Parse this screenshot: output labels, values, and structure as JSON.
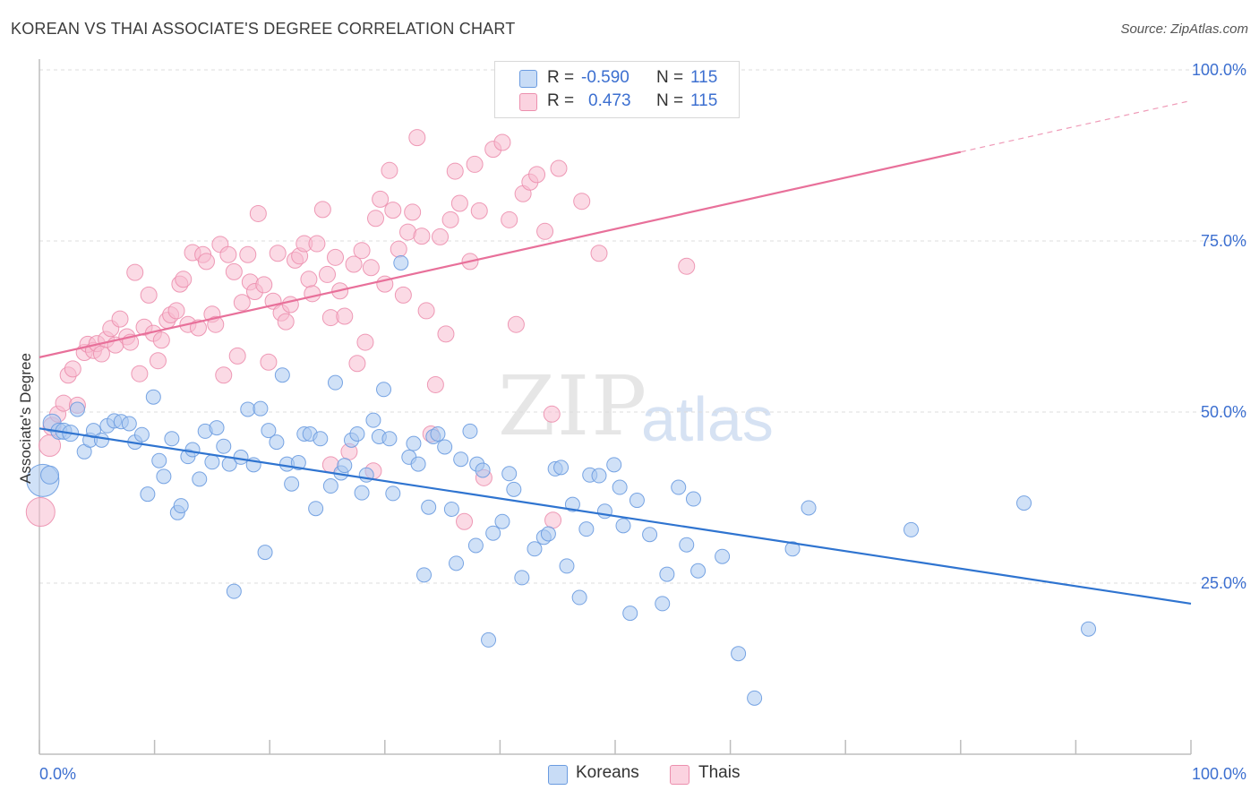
{
  "header": {
    "title": "KOREAN VS THAI ASSOCIATE'S DEGREE CORRELATION CHART",
    "source": "Source: ZipAtlas.com"
  },
  "watermark": {
    "zip": "ZIP",
    "atlas": "atlas"
  },
  "legend": {
    "r_label": "R =",
    "n_label": "N =",
    "rows": [
      {
        "r": "-0.590",
        "n": "115",
        "color": "#a9c8f0"
      },
      {
        "r": "0.473",
        "n": "115",
        "color": "#f7bcd0"
      }
    ]
  },
  "bottom_legend": [
    {
      "label": "Koreans",
      "color": "#a9c8f0"
    },
    {
      "label": "Thais",
      "color": "#f7bcd0"
    }
  ],
  "colors": {
    "korean_fill": "#a9c8f0",
    "korean_stroke": "#6a9be0",
    "korean_line": "#2f74d0",
    "thai_fill": "#f7bcd0",
    "thai_stroke": "#ec8fae",
    "thai_line": "#e8709a",
    "grid": "#dcdcdc"
  },
  "chart_data": {
    "type": "scatter",
    "title": "KOREAN VS THAI ASSOCIATE'S DEGREE CORRELATION CHART",
    "xlabel": "",
    "ylabel": "Associate's Degree",
    "xlim": [
      0,
      100
    ],
    "ylim": [
      0,
      100
    ],
    "x_tick_labels": [
      "0.0%",
      "100.0%"
    ],
    "y_tick_labels": [
      "25.0%",
      "50.0%",
      "75.0%",
      "100.0%"
    ],
    "y_ticks": [
      25,
      50,
      75,
      100
    ],
    "grid": true,
    "legend_position": "top-center",
    "series": [
      {
        "name": "Koreans",
        "r": -0.59,
        "n": 115,
        "trend": {
          "x": [
            0,
            100
          ],
          "y": [
            47.6,
            22.0
          ]
        },
        "points": [
          [
            0.3,
            40,
            18
          ],
          [
            0.9,
            40.8,
            10
          ],
          [
            1.1,
            48.4,
            10
          ],
          [
            1.7,
            47.2,
            9
          ],
          [
            2.1,
            47.2,
            9
          ],
          [
            2.7,
            46.9,
            9
          ],
          [
            3.3,
            50.4,
            8
          ],
          [
            3.9,
            44.2,
            8
          ],
          [
            4.4,
            45.9,
            8
          ],
          [
            4.7,
            47.3,
            8
          ],
          [
            5.4,
            45.9,
            8
          ],
          [
            5.9,
            48.0,
            8
          ],
          [
            6.5,
            48.7,
            8
          ],
          [
            7.1,
            48.6,
            8
          ],
          [
            7.8,
            48.3,
            8
          ],
          [
            8.3,
            45.6,
            8
          ],
          [
            8.9,
            46.7,
            8
          ],
          [
            9.4,
            38.0,
            8
          ],
          [
            9.9,
            52.2,
            8
          ],
          [
            10.4,
            42.9,
            8
          ],
          [
            10.8,
            40.6,
            8
          ],
          [
            11.5,
            46.1,
            8
          ],
          [
            12.0,
            35.3,
            8
          ],
          [
            12.3,
            36.3,
            8
          ],
          [
            12.9,
            43.5,
            8
          ],
          [
            13.3,
            44.5,
            8
          ],
          [
            13.9,
            40.2,
            8
          ],
          [
            14.4,
            47.2,
            8
          ],
          [
            15.0,
            42.7,
            8
          ],
          [
            15.4,
            47.7,
            8
          ],
          [
            16.0,
            45.0,
            8
          ],
          [
            16.5,
            42.4,
            8
          ],
          [
            16.9,
            23.8,
            8
          ],
          [
            17.5,
            43.4,
            8
          ],
          [
            18.1,
            50.4,
            8
          ],
          [
            18.6,
            42.3,
            8
          ],
          [
            19.2,
            50.5,
            8
          ],
          [
            19.6,
            29.5,
            8
          ],
          [
            19.9,
            47.3,
            8
          ],
          [
            20.6,
            45.6,
            8
          ],
          [
            21.1,
            55.4,
            8
          ],
          [
            21.5,
            42.4,
            8
          ],
          [
            21.9,
            39.5,
            8
          ],
          [
            22.5,
            42.6,
            8
          ],
          [
            23.0,
            46.8,
            8
          ],
          [
            23.5,
            46.8,
            8
          ],
          [
            24.0,
            35.9,
            8
          ],
          [
            24.4,
            46.1,
            8
          ],
          [
            25.3,
            39.2,
            8
          ],
          [
            25.7,
            54.3,
            8
          ],
          [
            26.2,
            41.1,
            8
          ],
          [
            26.5,
            42.2,
            8
          ],
          [
            27.1,
            45.9,
            8
          ],
          [
            27.6,
            46.8,
            8
          ],
          [
            28.0,
            38.2,
            8
          ],
          [
            28.4,
            40.8,
            8
          ],
          [
            29.0,
            48.8,
            8
          ],
          [
            29.5,
            46.4,
            8
          ],
          [
            29.9,
            53.3,
            8
          ],
          [
            30.4,
            46.1,
            8
          ],
          [
            30.7,
            38.1,
            8
          ],
          [
            31.4,
            71.8,
            8
          ],
          [
            32.1,
            43.4,
            8
          ],
          [
            32.5,
            45.4,
            8
          ],
          [
            32.9,
            42.4,
            8
          ],
          [
            33.4,
            26.2,
            8
          ],
          [
            33.8,
            36.1,
            8
          ],
          [
            34.2,
            46.4,
            8
          ],
          [
            34.6,
            46.8,
            8
          ],
          [
            35.2,
            44.9,
            8
          ],
          [
            35.8,
            35.8,
            8
          ],
          [
            36.2,
            27.9,
            8
          ],
          [
            36.6,
            43.1,
            8
          ],
          [
            37.4,
            47.2,
            8
          ],
          [
            37.9,
            30.5,
            8
          ],
          [
            38.0,
            42.4,
            8
          ],
          [
            38.5,
            41.5,
            8
          ],
          [
            39.0,
            16.7,
            8
          ],
          [
            39.4,
            32.3,
            8
          ],
          [
            40.2,
            34.0,
            8
          ],
          [
            40.8,
            41.0,
            8
          ],
          [
            41.2,
            38.7,
            8
          ],
          [
            41.9,
            25.8,
            8
          ],
          [
            43.0,
            30.0,
            8
          ],
          [
            43.8,
            31.7,
            8
          ],
          [
            44.2,
            32.2,
            8
          ],
          [
            44.8,
            41.7,
            8
          ],
          [
            45.3,
            41.9,
            8
          ],
          [
            45.8,
            27.5,
            8
          ],
          [
            46.3,
            36.5,
            8
          ],
          [
            46.9,
            22.9,
            8
          ],
          [
            47.5,
            32.9,
            8
          ],
          [
            47.8,
            40.8,
            8
          ],
          [
            48.6,
            40.7,
            8
          ],
          [
            49.1,
            35.5,
            8
          ],
          [
            49.9,
            42.3,
            8
          ],
          [
            50.4,
            39.0,
            8
          ],
          [
            50.7,
            33.4,
            8
          ],
          [
            51.3,
            20.6,
            8
          ],
          [
            51.9,
            37.1,
            8
          ],
          [
            53.0,
            32.1,
            8
          ],
          [
            54.1,
            22.0,
            8
          ],
          [
            54.5,
            26.3,
            8
          ],
          [
            55.5,
            39.0,
            8
          ],
          [
            56.2,
            30.6,
            8
          ],
          [
            56.8,
            37.3,
            8
          ],
          [
            57.2,
            26.8,
            8
          ],
          [
            59.3,
            28.9,
            8
          ],
          [
            60.7,
            14.7,
            8
          ],
          [
            62.1,
            8.2,
            8
          ],
          [
            65.4,
            30.0,
            8
          ],
          [
            66.8,
            36.0,
            8
          ],
          [
            75.7,
            32.8,
            8
          ],
          [
            85.5,
            36.7,
            8
          ],
          [
            91.1,
            18.3,
            8
          ]
        ]
      },
      {
        "name": "Thais",
        "r": 0.473,
        "n": 115,
        "trend": {
          "x": [
            0,
            80
          ],
          "y": [
            58.0,
            88.0
          ],
          "dashed_to": [
            100,
            95.5
          ]
        },
        "points": [
          [
            0.1,
            35.4,
            16
          ],
          [
            0.9,
            45.1,
            12
          ],
          [
            1.1,
            47.9,
            10
          ],
          [
            1.6,
            49.7,
            9
          ],
          [
            2.1,
            51.3,
            9
          ],
          [
            2.5,
            55.4,
            9
          ],
          [
            2.9,
            56.3,
            9
          ],
          [
            3.3,
            51.0,
            9
          ],
          [
            3.9,
            58.7,
            9
          ],
          [
            4.2,
            59.9,
            9
          ],
          [
            4.7,
            59.0,
            9
          ],
          [
            5.0,
            60.0,
            9
          ],
          [
            5.4,
            58.5,
            9
          ],
          [
            5.8,
            60.6,
            9
          ],
          [
            6.2,
            62.2,
            9
          ],
          [
            6.6,
            59.8,
            9
          ],
          [
            7.0,
            63.6,
            9
          ],
          [
            7.6,
            61.0,
            9
          ],
          [
            7.9,
            60.2,
            9
          ],
          [
            8.3,
            70.4,
            9
          ],
          [
            8.7,
            55.6,
            9
          ],
          [
            9.1,
            62.4,
            9
          ],
          [
            9.5,
            67.1,
            9
          ],
          [
            9.9,
            61.5,
            9
          ],
          [
            10.3,
            57.5,
            9
          ],
          [
            10.6,
            60.5,
            9
          ],
          [
            11.1,
            63.4,
            9
          ],
          [
            11.4,
            64.2,
            9
          ],
          [
            11.9,
            64.8,
            9
          ],
          [
            12.2,
            68.7,
            9
          ],
          [
            12.5,
            69.4,
            9
          ],
          [
            12.9,
            62.8,
            9
          ],
          [
            13.3,
            73.3,
            9
          ],
          [
            13.8,
            62.3,
            9
          ],
          [
            14.2,
            73.0,
            9
          ],
          [
            14.5,
            72.0,
            9
          ],
          [
            15.0,
            64.3,
            9
          ],
          [
            15.3,
            62.8,
            9
          ],
          [
            15.7,
            74.5,
            9
          ],
          [
            16.0,
            55.4,
            9
          ],
          [
            16.4,
            73.0,
            9
          ],
          [
            16.9,
            70.5,
            9
          ],
          [
            17.2,
            58.2,
            9
          ],
          [
            17.6,
            66.0,
            9
          ],
          [
            18.1,
            73.0,
            9
          ],
          [
            18.3,
            69.0,
            9
          ],
          [
            18.7,
            67.6,
            9
          ],
          [
            19.0,
            79.0,
            9
          ],
          [
            19.5,
            68.6,
            9
          ],
          [
            19.9,
            57.3,
            9
          ],
          [
            20.3,
            66.2,
            9
          ],
          [
            20.7,
            73.2,
            9
          ],
          [
            21.0,
            64.5,
            9
          ],
          [
            21.4,
            63.2,
            9
          ],
          [
            21.8,
            65.7,
            9
          ],
          [
            22.2,
            72.2,
            9
          ],
          [
            22.6,
            72.8,
            9
          ],
          [
            23.0,
            74.6,
            9
          ],
          [
            23.4,
            69.4,
            9
          ],
          [
            23.7,
            67.3,
            9
          ],
          [
            24.1,
            74.6,
            9
          ],
          [
            24.6,
            79.6,
            9
          ],
          [
            25.0,
            70.1,
            9
          ],
          [
            25.3,
            63.8,
            9
          ],
          [
            25.7,
            72.6,
            9
          ],
          [
            26.1,
            67.7,
            9
          ],
          [
            26.5,
            64.0,
            9
          ],
          [
            26.9,
            44.2,
            9
          ],
          [
            27.3,
            71.6,
            9
          ],
          [
            27.6,
            57.1,
            9
          ],
          [
            28.0,
            73.6,
            9
          ],
          [
            28.3,
            60.2,
            9
          ],
          [
            28.8,
            71.1,
            9
          ],
          [
            29.2,
            78.3,
            9
          ],
          [
            29.6,
            81.1,
            9
          ],
          [
            30.0,
            68.7,
            9
          ],
          [
            30.4,
            85.3,
            9
          ],
          [
            30.7,
            79.5,
            9
          ],
          [
            31.2,
            73.8,
            9
          ],
          [
            31.6,
            67.1,
            9
          ],
          [
            32.0,
            76.3,
            9
          ],
          [
            32.4,
            79.2,
            9
          ],
          [
            32.8,
            90.1,
            9
          ],
          [
            33.2,
            75.7,
            9
          ],
          [
            33.6,
            64.8,
            9
          ],
          [
            34.0,
            46.8,
            9
          ],
          [
            34.4,
            54.0,
            9
          ],
          [
            34.8,
            75.6,
            9
          ],
          [
            35.3,
            61.4,
            9
          ],
          [
            35.7,
            78.1,
            9
          ],
          [
            36.1,
            85.2,
            9
          ],
          [
            36.5,
            80.5,
            9
          ],
          [
            36.9,
            34.0,
            9
          ],
          [
            37.4,
            72.0,
            9
          ],
          [
            37.8,
            86.2,
            9
          ],
          [
            38.2,
            79.4,
            9
          ],
          [
            38.6,
            40.4,
            9
          ],
          [
            39.4,
            88.4,
            9
          ],
          [
            40.2,
            89.4,
            9
          ],
          [
            40.8,
            78.1,
            9
          ],
          [
            41.4,
            62.8,
            9
          ],
          [
            42.0,
            81.9,
            9
          ],
          [
            42.6,
            83.6,
            9
          ],
          [
            43.2,
            84.7,
            9
          ],
          [
            43.9,
            76.4,
            9
          ],
          [
            44.5,
            49.7,
            9
          ],
          [
            45.1,
            85.6,
            9
          ],
          [
            47.1,
            80.8,
            9
          ],
          [
            48.6,
            73.2,
            9
          ],
          [
            56.2,
            71.3,
            9
          ],
          [
            44.6,
            34.2,
            9
          ],
          [
            29.0,
            41.4,
            9
          ],
          [
            25.3,
            42.3,
            9
          ]
        ]
      }
    ]
  }
}
